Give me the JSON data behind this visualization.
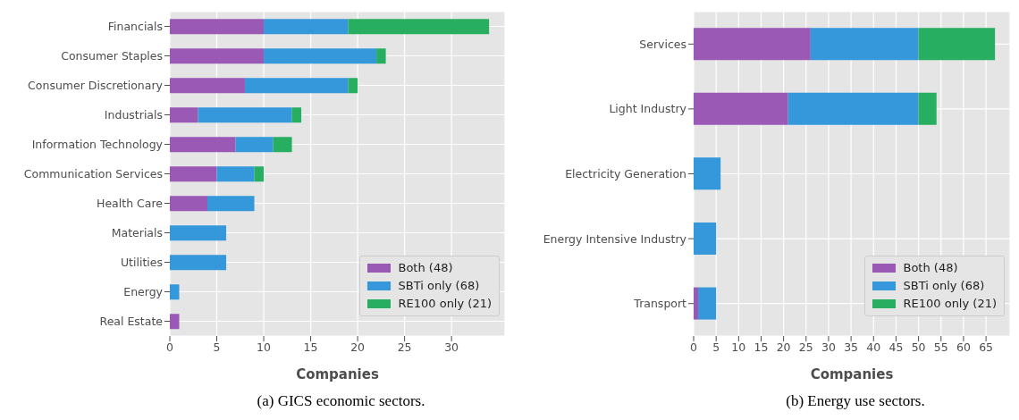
{
  "chart_data": [
    {
      "type": "bar",
      "orientation": "horizontal",
      "stacked": true,
      "categories": [
        "Financials",
        "Consumer Staples",
        "Consumer Discretionary",
        "Industrials",
        "Information Technology",
        "Communication Services",
        "Health Care",
        "Materials",
        "Utilities",
        "Energy",
        "Real Estate"
      ],
      "series": [
        {
          "name": "Both (48)",
          "color": "#9b59b6",
          "values": [
            10,
            10,
            8,
            3,
            7,
            5,
            4,
            0,
            0,
            0,
            1
          ]
        },
        {
          "name": "SBTi only (68)",
          "color": "#3498db",
          "values": [
            9,
            12,
            11,
            10,
            4,
            4,
            5,
            6,
            6,
            1,
            0
          ]
        },
        {
          "name": "RE100 only (21)",
          "color": "#27ae60",
          "values": [
            15,
            1,
            1,
            1,
            2,
            1,
            0,
            0,
            0,
            0,
            0
          ]
        }
      ],
      "xlabel": "Companies",
      "xlim": [
        0,
        35.7
      ],
      "xticks": [
        0,
        5,
        10,
        15,
        20,
        25,
        30
      ],
      "grid": true,
      "legend": "bottom right",
      "annotations": [
        "(a) GICS economic sectors."
      ]
    },
    {
      "type": "bar",
      "orientation": "horizontal",
      "stacked": true,
      "categories": [
        "Services",
        "Light Industry",
        "Electricity Generation",
        "Energy Intensive Industry",
        "Transport"
      ],
      "series": [
        {
          "name": "Both (48)",
          "color": "#9b59b6",
          "values": [
            26,
            21,
            0,
            0,
            1
          ]
        },
        {
          "name": "SBTi only (68)",
          "color": "#3498db",
          "values": [
            24,
            29,
            6,
            5,
            4
          ]
        },
        {
          "name": "RE100 only (21)",
          "color": "#27ae60",
          "values": [
            17,
            4,
            0,
            0,
            0
          ]
        }
      ],
      "xlabel": "Companies",
      "xlim": [
        0,
        70.35
      ],
      "xticks": [
        0,
        5,
        10,
        15,
        20,
        25,
        30,
        35,
        40,
        45,
        50,
        55,
        60,
        65
      ],
      "grid": true,
      "legend": "bottom right",
      "annotations": [
        "(b) Energy use sectors."
      ]
    }
  ]
}
